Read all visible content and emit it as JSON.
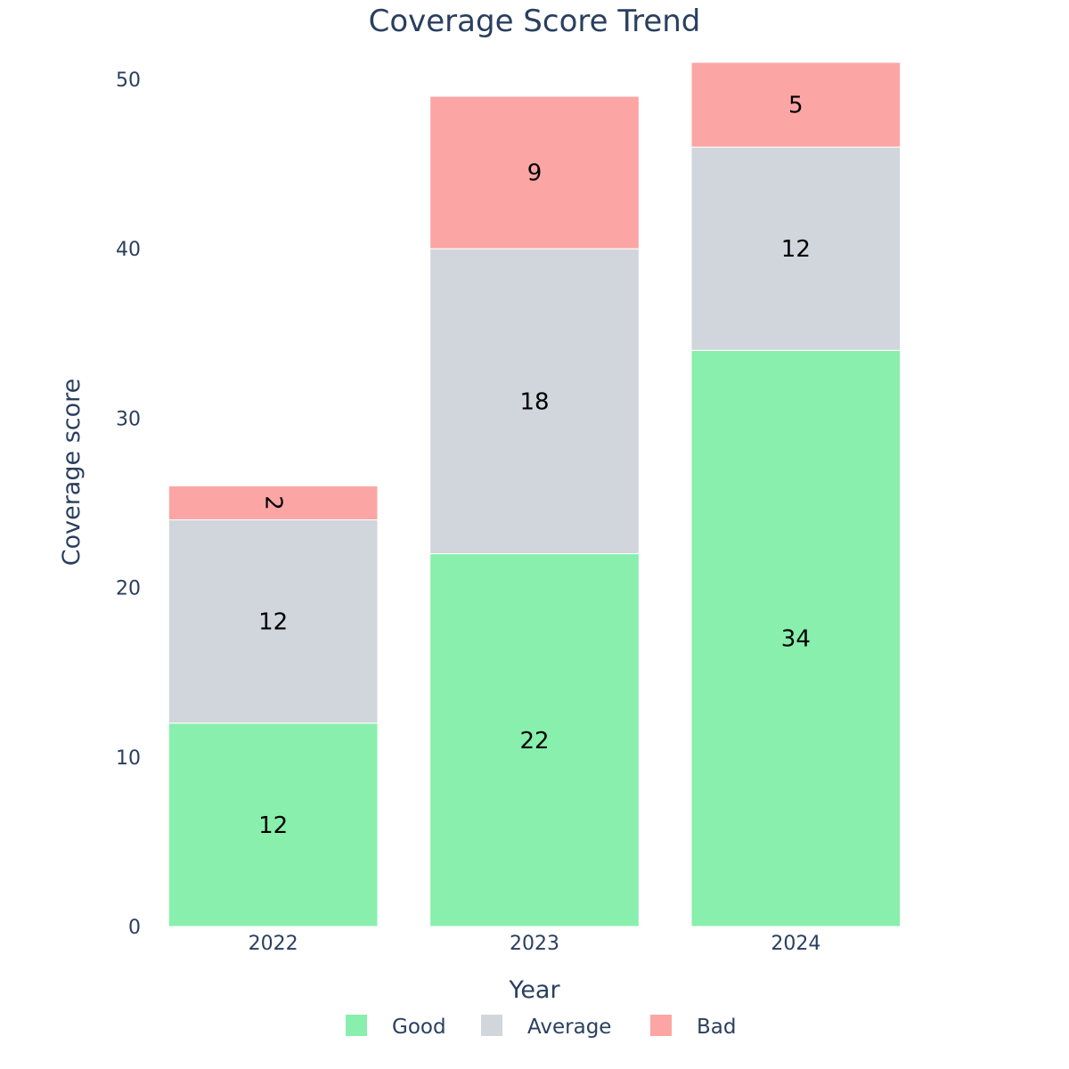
{
  "chart_data": {
    "type": "bar",
    "stacked": true,
    "title": "Coverage Score Trend",
    "xlabel": "Year",
    "ylabel": "Coverage score",
    "categories": [
      "2022",
      "2023",
      "2024"
    ],
    "series": [
      {
        "name": "Good",
        "values": [
          12,
          22,
          34
        ],
        "color": "#88efac"
      },
      {
        "name": "Average",
        "values": [
          12,
          18,
          12
        ],
        "color": "#d1d5dc"
      },
      {
        "name": "Bad",
        "values": [
          2,
          9,
          5
        ],
        "color": "#fca5a5"
      }
    ],
    "ylim": [
      0,
      51
    ],
    "yticks": [
      0,
      10,
      20,
      30,
      40,
      50
    ],
    "grid": false,
    "legend_position": "bottom"
  }
}
